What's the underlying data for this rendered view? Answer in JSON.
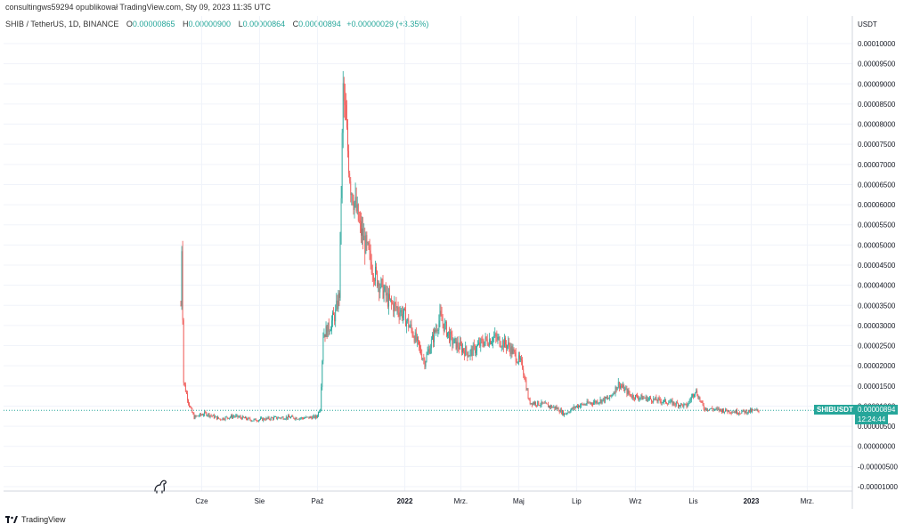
{
  "header": {
    "byline": "consultingws59294 opublikował TradingView.com, Sty 09, 2023 11:35 UTC"
  },
  "legend": {
    "symbol": "SHIB / TetherUS, 1D, BINANCE",
    "open_label": "O",
    "open_value": "0.00000865",
    "high_label": "H",
    "high_value": "0.00000900",
    "low_label": "L",
    "low_value": "0.00000864",
    "close_label": "C",
    "close_value": "0.00000894",
    "change": "+0.00000029 (+3.35%)"
  },
  "footer": {
    "brand": "TradingView"
  },
  "price_badge": {
    "symbol": "SHIBUSDT",
    "price": "0.00000894",
    "countdown": "12:24:44"
  },
  "colors": {
    "up": "#26a69a",
    "down": "#ef5350",
    "axis_text": "#131722",
    "grid": "#f0f3fa",
    "price_line": "#26a69a"
  },
  "chart_data": {
    "type": "candlestick",
    "symbol": "SHIB / TetherUS",
    "interval": "1D",
    "exchange": "BINANCE",
    "y_unit": "USDT",
    "ylim": [
      -1e-05,
      1e-05
    ],
    "y_ticks": [
      "0.00010000",
      "0.00009500",
      "0.00009000",
      "0.00008500",
      "0.00008000",
      "0.00007500",
      "0.00007000",
      "0.00006500",
      "0.00006000",
      "0.00005500",
      "0.00005000",
      "0.00004500",
      "0.00004000",
      "0.00003500",
      "0.00003000",
      "0.00002500",
      "0.00002000",
      "0.00001500",
      "0.00001000",
      "0.00000500",
      "0.00000000",
      "-0.00000500",
      "-0.00001000"
    ],
    "x_ticks": [
      "Cze",
      "Sie",
      "Paź",
      "2022",
      "Mrz.",
      "Maj",
      "Lip",
      "Wrz",
      "Lis",
      "2023",
      "Mrz."
    ],
    "grid": true,
    "last_price": 8.94e-06,
    "price_path": [
      {
        "date": "2021-05-10",
        "price": 3.5e-05
      },
      {
        "date": "2021-05-11",
        "price": 5e-05
      },
      {
        "date": "2021-05-13",
        "price": 1.6e-05
      },
      {
        "date": "2021-05-16",
        "price": 1.3e-05
      },
      {
        "date": "2021-05-20",
        "price": 9.5e-06
      },
      {
        "date": "2021-05-24",
        "price": 7.2e-06
      },
      {
        "date": "2021-06-05",
        "price": 8.2e-06
      },
      {
        "date": "2021-06-20",
        "price": 6.8e-06
      },
      {
        "date": "2021-07-05",
        "price": 7.5e-06
      },
      {
        "date": "2021-07-25",
        "price": 6.5e-06
      },
      {
        "date": "2021-08-15",
        "price": 7e-06
      },
      {
        "date": "2021-08-30",
        "price": 7.2e-06
      },
      {
        "date": "2021-09-15",
        "price": 7e-06
      },
      {
        "date": "2021-09-30",
        "price": 7.3e-06
      },
      {
        "date": "2021-10-04",
        "price": 9.5e-06
      },
      {
        "date": "2021-10-07",
        "price": 2.8e-05
      },
      {
        "date": "2021-10-12",
        "price": 2.9e-05
      },
      {
        "date": "2021-10-20",
        "price": 3.3e-05
      },
      {
        "date": "2021-10-24",
        "price": 3.8e-05
      },
      {
        "date": "2021-10-28",
        "price": 8.8e-05
      },
      {
        "date": "2021-11-05",
        "price": 6.5e-05
      },
      {
        "date": "2021-11-15",
        "price": 5.4e-05
      },
      {
        "date": "2021-11-30",
        "price": 4.3e-05
      },
      {
        "date": "2021-12-15",
        "price": 3.6e-05
      },
      {
        "date": "2021-12-30",
        "price": 3.3e-05
      },
      {
        "date": "2022-01-10",
        "price": 2.8e-05
      },
      {
        "date": "2022-01-22",
        "price": 2.1e-05
      },
      {
        "date": "2022-02-07",
        "price": 3.2e-05
      },
      {
        "date": "2022-02-20",
        "price": 2.6e-05
      },
      {
        "date": "2022-03-10",
        "price": 2.3e-05
      },
      {
        "date": "2022-03-25",
        "price": 2.6e-05
      },
      {
        "date": "2022-04-05",
        "price": 2.7e-05
      },
      {
        "date": "2022-04-20",
        "price": 2.5e-05
      },
      {
        "date": "2022-05-05",
        "price": 2e-05
      },
      {
        "date": "2022-05-12",
        "price": 1.1e-05
      },
      {
        "date": "2022-05-25",
        "price": 1.05e-05
      },
      {
        "date": "2022-06-10",
        "price": 9.5e-06
      },
      {
        "date": "2022-06-18",
        "price": 8e-06
      },
      {
        "date": "2022-07-01",
        "price": 1e-05
      },
      {
        "date": "2022-07-20",
        "price": 1.1e-05
      },
      {
        "date": "2022-08-05",
        "price": 1.2e-05
      },
      {
        "date": "2022-08-14",
        "price": 1.55e-05
      },
      {
        "date": "2022-08-28",
        "price": 1.25e-05
      },
      {
        "date": "2022-09-15",
        "price": 1.18e-05
      },
      {
        "date": "2022-10-05",
        "price": 1.1e-05
      },
      {
        "date": "2022-10-25",
        "price": 1e-05
      },
      {
        "date": "2022-11-03",
        "price": 1.4e-05
      },
      {
        "date": "2022-11-12",
        "price": 9.5e-06
      },
      {
        "date": "2022-11-30",
        "price": 9e-06
      },
      {
        "date": "2022-12-20",
        "price": 8.5e-06
      },
      {
        "date": "2023-01-09",
        "price": 8.9e-06
      }
    ]
  }
}
